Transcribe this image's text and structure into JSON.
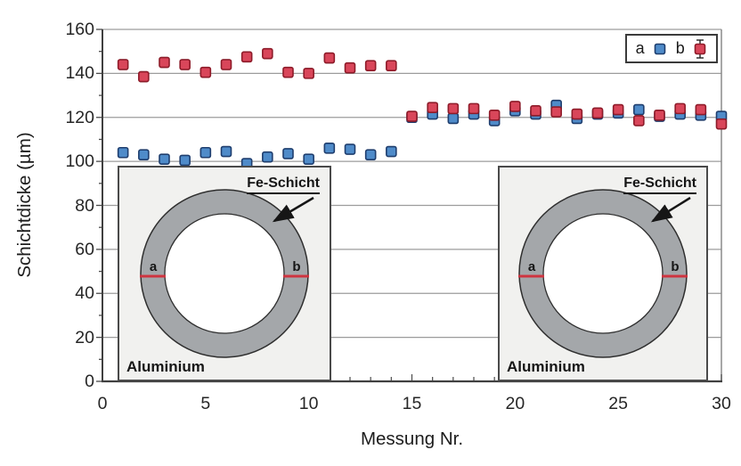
{
  "axes": {
    "y_title": "Schichtdicke (µm)",
    "x_title": "Messung Nr.",
    "y_ticks": [
      0,
      20,
      40,
      60,
      80,
      100,
      120,
      140,
      160
    ],
    "y_minor_step": 10,
    "x_major_ticks": [
      0,
      5,
      10,
      15,
      20,
      25,
      30
    ],
    "x_minor_step": 1
  },
  "legend": {
    "a_label": "a",
    "b_label": "b"
  },
  "chart_data": {
    "type": "scatter",
    "title": "",
    "xlabel": "Messung Nr.",
    "ylabel": "Schichtdicke (µm)",
    "xlim": [
      0,
      30
    ],
    "ylim": [
      0,
      160
    ],
    "grid": "horizontal",
    "legend_position": "top-right",
    "x": [
      1,
      2,
      3,
      4,
      5,
      6,
      7,
      8,
      9,
      10,
      11,
      12,
      13,
      14,
      15,
      16,
      17,
      18,
      19,
      20,
      21,
      22,
      23,
      24,
      25,
      26,
      27,
      28,
      29,
      30
    ],
    "series": [
      {
        "name": "a",
        "marker": "square",
        "color": "#4f8bc9",
        "edge": "#1f3e6e",
        "values": [
          104,
          103,
          101,
          100.5,
          104,
          104.5,
          99,
          102,
          103.5,
          101,
          106,
          105.5,
          103,
          104.5,
          120,
          121.5,
          119.5,
          121.5,
          118.5,
          123,
          121.5,
          125.5,
          119.5,
          121.5,
          122,
          123.5,
          120.5,
          121.5,
          121,
          120.5
        ],
        "errors": [
          0,
          0,
          0,
          0,
          0,
          0,
          0,
          0,
          0,
          0,
          0,
          0,
          0,
          0,
          1.6,
          1.6,
          1.6,
          1.6,
          1.6,
          1.6,
          1.6,
          1.6,
          1.6,
          1.6,
          1.6,
          1.6,
          1.6,
          1.6,
          1.6,
          1.6
        ]
      },
      {
        "name": "b",
        "marker": "square",
        "color": "#d9465a",
        "edge": "#8e1b29",
        "values": [
          144,
          138.5,
          145,
          144,
          140.5,
          144,
          147.5,
          149,
          140.5,
          140,
          147,
          142.5,
          143.5,
          143.5,
          120.5,
          124.5,
          124,
          124,
          121,
          125,
          123,
          122.5,
          121.5,
          122,
          123.5,
          118.5,
          121,
          124,
          123.5,
          117
        ],
        "errors": [
          2.2,
          2.2,
          2.2,
          2.2,
          2.2,
          2.2,
          2.2,
          2.2,
          2.2,
          2.2,
          2.2,
          2.2,
          2.2,
          2.2,
          1.8,
          1.8,
          1.8,
          1.8,
          1.8,
          1.8,
          1.8,
          1.8,
          1.8,
          1.8,
          1.8,
          1.8,
          1.8,
          1.8,
          1.8,
          1.8
        ]
      }
    ]
  },
  "insets": [
    {
      "fe_label": "Fe-Schicht",
      "a_label": "a",
      "b_label": "b",
      "material_label": "Aluminium"
    },
    {
      "fe_label": "Fe-Schicht",
      "a_label": "a",
      "b_label": "b",
      "material_label": "Aluminium"
    }
  ],
  "colors": {
    "gridline": "#9c9c9c",
    "axis": "#404040",
    "tick": "#4b4b4b",
    "error_bar": "#222222",
    "ring_fill": "#a4a7aa",
    "ring_edge": "#2e2e2e",
    "measure_line": "#cf3440",
    "inset_bg": "#f1f1ef"
  }
}
